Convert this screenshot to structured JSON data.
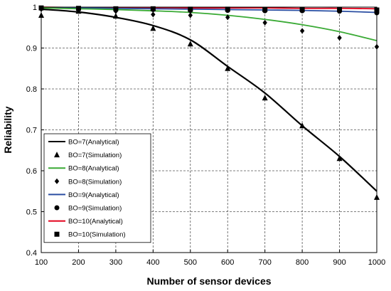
{
  "chart_data": {
    "type": "line",
    "title": "",
    "xlabel": "Number of sensor devices",
    "ylabel": "Reliability",
    "xlim": [
      100,
      1000
    ],
    "ylim": [
      0.4,
      1.0
    ],
    "x_ticks": [
      100,
      200,
      300,
      400,
      500,
      600,
      700,
      800,
      900,
      1000
    ],
    "y_ticks": [
      0.4,
      0.5,
      0.6,
      0.7,
      0.8,
      0.9,
      1.0
    ],
    "y_tick_labels": [
      "0.4",
      "0.5",
      "0.6",
      "0.7",
      "0.8",
      "0.9",
      "1"
    ],
    "grid": true,
    "legend_position": "bottom-left",
    "series": [
      {
        "name": "BO=7(Analytical)",
        "kind": "line",
        "color": "#000000",
        "x": [
          100,
          200,
          300,
          400,
          500,
          600,
          700,
          800,
          900,
          1000
        ],
        "values": [
          0.995,
          0.988,
          0.975,
          0.955,
          0.92,
          0.855,
          0.79,
          0.71,
          0.635,
          0.55
        ]
      },
      {
        "name": "BO=7(Simulation)",
        "kind": "marker",
        "marker": "triangle",
        "color": "#000000",
        "x": [
          100,
          200,
          300,
          400,
          500,
          600,
          700,
          800,
          900,
          1000
        ],
        "values": [
          0.98,
          0.99,
          0.978,
          0.948,
          0.91,
          0.85,
          0.778,
          0.71,
          0.63,
          0.535
        ]
      },
      {
        "name": "BO=8(Analytical)",
        "kind": "line",
        "color": "#3aaa35",
        "x": [
          100,
          200,
          300,
          400,
          500,
          600,
          700,
          800,
          900,
          1000
        ],
        "values": [
          0.998,
          0.996,
          0.994,
          0.991,
          0.987,
          0.98,
          0.97,
          0.957,
          0.94,
          0.918
        ]
      },
      {
        "name": "BO=8(Simulation)",
        "kind": "marker",
        "marker": "diamond",
        "color": "#000000",
        "x": [
          100,
          200,
          300,
          400,
          500,
          600,
          700,
          800,
          900,
          1000
        ],
        "values": [
          0.995,
          0.993,
          0.99,
          0.982,
          0.98,
          0.975,
          0.962,
          0.942,
          0.925,
          0.903
        ]
      },
      {
        "name": "BO=9(Analytical)",
        "kind": "line",
        "color": "#2b4ea2",
        "x": [
          100,
          200,
          300,
          400,
          500,
          600,
          700,
          800,
          900,
          1000
        ],
        "values": [
          0.999,
          0.998,
          0.997,
          0.996,
          0.995,
          0.994,
          0.993,
          0.992,
          0.99,
          0.987
        ]
      },
      {
        "name": "BO=9(Simulation)",
        "kind": "marker",
        "marker": "circle",
        "color": "#000000",
        "x": [
          100,
          200,
          300,
          400,
          500,
          600,
          700,
          800,
          900,
          1000
        ],
        "values": [
          0.997,
          0.996,
          0.995,
          0.994,
          0.992,
          0.992,
          0.991,
          0.991,
          0.99,
          0.986
        ]
      },
      {
        "name": "BO=10(Analytical)",
        "kind": "line",
        "color": "#e3001b",
        "x": [
          100,
          200,
          300,
          400,
          500,
          600,
          700,
          800,
          900,
          1000
        ],
        "values": [
          1.0,
          0.999,
          0.999,
          0.999,
          0.998,
          0.998,
          0.998,
          0.997,
          0.997,
          0.996
        ]
      },
      {
        "name": "BO=10(Simulation)",
        "kind": "marker",
        "marker": "square",
        "color": "#000000",
        "x": [
          100,
          200,
          300,
          400,
          500,
          600,
          700,
          800,
          900,
          1000
        ],
        "values": [
          0.998,
          0.997,
          0.996,
          0.996,
          0.995,
          0.995,
          0.994,
          0.994,
          0.994,
          0.993
        ]
      }
    ]
  }
}
